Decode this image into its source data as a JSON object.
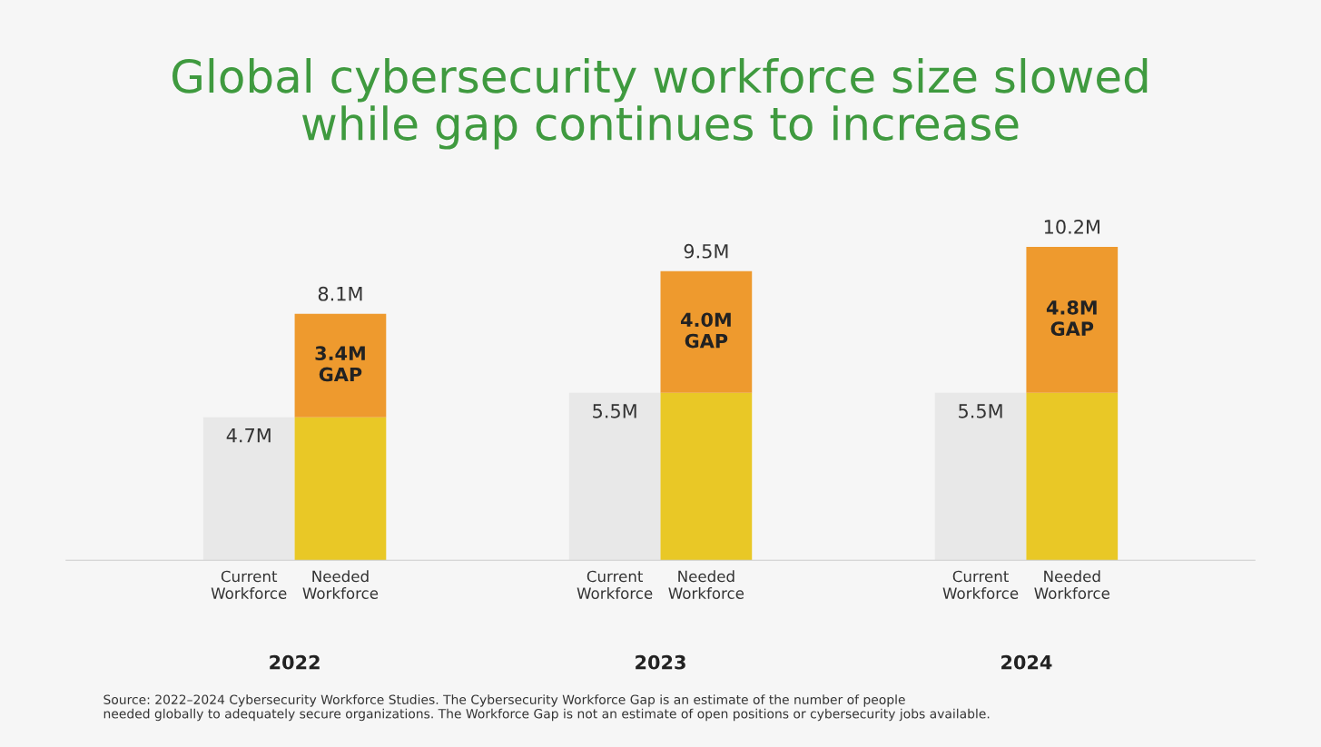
{
  "chart_data": {
    "type": "bar",
    "title": "Global cybersecurity workforce size slowed\nwhile gap continues to increase",
    "categories": [
      "Current\nWorkforce",
      "Needed\nWorkforce",
      null,
      null,
      "Current\nWorkforce",
      "Needed\nWorkforce",
      null,
      null,
      "Current\nWorkforce",
      "Needed\nWorkforce"
    ],
    "stacked": true,
    "series": [
      {
        "color": "#e8e8e8",
        "values": [
          4.7,
          null,
          null,
          null,
          5.5,
          null,
          null,
          null,
          5.5,
          null
        ],
        "value_labels": [
          "4.7M",
          null,
          null,
          null,
          "5.5M",
          null,
          null,
          null,
          "5.5M",
          null
        ]
      },
      {
        "color": "#e9c826",
        "values": [
          null,
          4.7,
          null,
          null,
          null,
          5.5,
          null,
          null,
          null,
          5.5
        ]
      },
      {
        "color": "#ee9a2e",
        "values": [
          null,
          3.4,
          null,
          null,
          null,
          4.0,
          null,
          null,
          null,
          4.8
        ],
        "value_labels": [
          null,
          "3.4M\nGAP",
          null,
          null,
          null,
          "4.0M\nGAP",
          null,
          null,
          null,
          "4.8M\nGAP"
        ]
      }
    ],
    "totals": [
      null,
      "8.1M",
      null,
      null,
      null,
      "9.5M",
      null,
      null,
      null,
      "10.2M"
    ],
    "annotations": [
      "2022",
      "2023",
      "2024",
      "Source: 2022–2024 Cybersecurity Workforce Studies. The Cybersecurity Workforce Gap is an estimate of the number of people\nneeded globally to adequately secure organizations. The Workforce Gap is not an estimate of open positions or cybersecurity jobs available."
    ],
    "tick_labels": "x",
    "grid": false,
    "legend": false
  }
}
